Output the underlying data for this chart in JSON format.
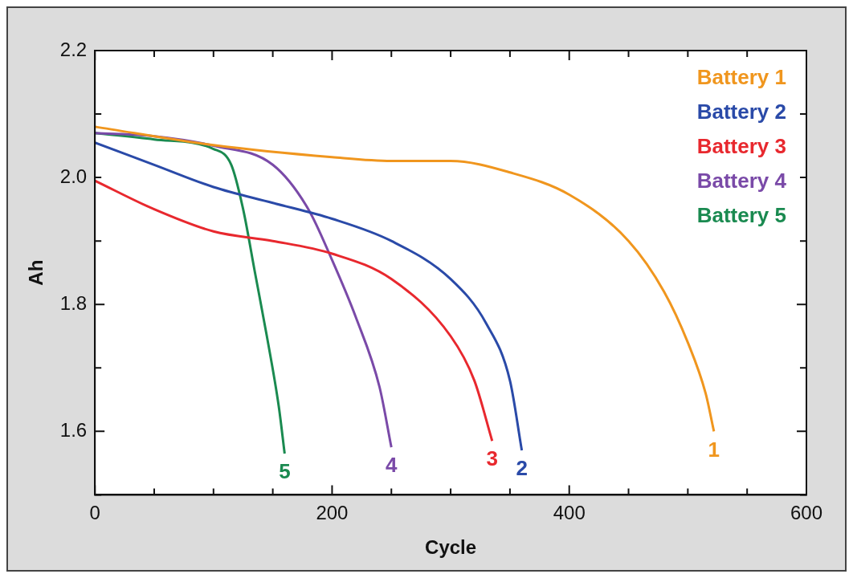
{
  "chart_data": {
    "type": "line",
    "xlabel": "Cycle",
    "ylabel": "Ah",
    "xlim": [
      0,
      600
    ],
    "xticks": [
      0,
      {
        "value": 50,
        "label": null
      },
      {
        "value": 100,
        "label": null
      },
      {
        "value": 150,
        "label": null
      },
      200,
      {
        "value": 250,
        "label": null
      },
      {
        "value": 300,
        "label": null
      },
      {
        "value": 350,
        "label": null
      },
      400,
      {
        "value": 450,
        "label": null
      },
      {
        "value": 500,
        "label": null
      },
      {
        "value": 550,
        "label": null
      },
      600
    ],
    "ylim": [
      1.5,
      2.2
    ],
    "yticks": [
      {
        "value": 1.5,
        "label": null
      },
      1.6,
      {
        "value": 1.7,
        "label": null
      },
      1.8,
      {
        "value": 1.9,
        "label": null
      },
      {
        "value": 2.0,
        "label": "2.0"
      },
      {
        "value": 2.1,
        "label": null
      },
      2.2
    ],
    "legend": "top right",
    "marker": "none",
    "line_style": "solid",
    "series": [
      {
        "name": "Battery 1",
        "color": "#f0961e",
        "x": [
          0,
          100,
          200,
          250,
          300,
          350,
          400,
          450,
          480,
          500,
          515,
          522
        ],
        "values": [
          2.08,
          2.051,
          2.032,
          2.026,
          2.026,
          2.008,
          1.973,
          1.9,
          1.82,
          1.74,
          1.66,
          1.6
        ]
      },
      {
        "name": "Battery 2",
        "color": "#2a4aa8",
        "x": [
          0,
          50,
          100,
          150,
          200,
          250,
          300,
          330,
          350,
          360
        ],
        "values": [
          2.055,
          2.02,
          1.985,
          1.96,
          1.935,
          1.9,
          1.84,
          1.77,
          1.68,
          1.57
        ]
      },
      {
        "name": "Battery 3",
        "color": "#e8282e",
        "x": [
          0,
          50,
          100,
          150,
          200,
          250,
          300,
          320,
          335
        ],
        "values": [
          1.995,
          1.95,
          1.915,
          1.9,
          1.88,
          1.84,
          1.75,
          1.68,
          1.585
        ]
      },
      {
        "name": "Battery 4",
        "color": "#7a4aa8",
        "x": [
          0,
          50,
          100,
          150,
          180,
          200,
          220,
          240,
          250
        ],
        "values": [
          2.07,
          2.065,
          2.05,
          2.02,
          1.95,
          1.87,
          1.78,
          1.67,
          1.575
        ]
      },
      {
        "name": "Battery 5",
        "color": "#1a8a50",
        "x": [
          0,
          50,
          100,
          115,
          125,
          135,
          145,
          155,
          160
        ],
        "values": [
          2.07,
          2.06,
          2.045,
          2.02,
          1.95,
          1.85,
          1.75,
          1.64,
          1.565
        ]
      }
    ],
    "annotations": [
      "1",
      "2",
      "3",
      "4",
      "5"
    ]
  }
}
